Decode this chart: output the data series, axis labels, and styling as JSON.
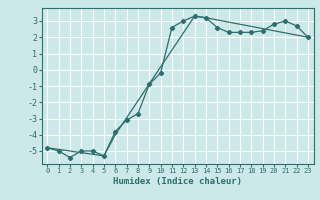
{
  "title": "",
  "xlabel": "Humidex (Indice chaleur)",
  "bg_color": "#cce8e8",
  "line_color": "#2d6e6e",
  "grid_color": "#ffffff",
  "xlim": [
    -0.5,
    23.5
  ],
  "ylim": [
    -5.8,
    3.8
  ],
  "yticks": [
    -5,
    -4,
    -3,
    -2,
    -1,
    0,
    1,
    2,
    3
  ],
  "xticks": [
    0,
    1,
    2,
    3,
    4,
    5,
    6,
    7,
    8,
    9,
    10,
    11,
    12,
    13,
    14,
    15,
    16,
    17,
    18,
    19,
    20,
    21,
    22,
    23
  ],
  "line1_x": [
    0,
    1,
    2,
    3,
    4,
    5,
    6,
    7,
    8,
    9,
    10,
    11,
    12,
    13,
    14,
    15,
    16,
    17,
    18,
    19,
    20,
    21,
    22,
    23
  ],
  "line1_y": [
    -4.8,
    -5.0,
    -5.4,
    -5.0,
    -5.0,
    -5.3,
    -3.8,
    -3.1,
    -2.7,
    -0.9,
    -0.2,
    2.6,
    3.0,
    3.3,
    3.2,
    2.6,
    2.3,
    2.3,
    2.3,
    2.4,
    2.8,
    3.0,
    2.7,
    2.0
  ],
  "line2_x": [
    0,
    5,
    6,
    13,
    14,
    23
  ],
  "line2_y": [
    -4.8,
    -5.3,
    -4.0,
    3.3,
    3.2,
    2.0
  ]
}
